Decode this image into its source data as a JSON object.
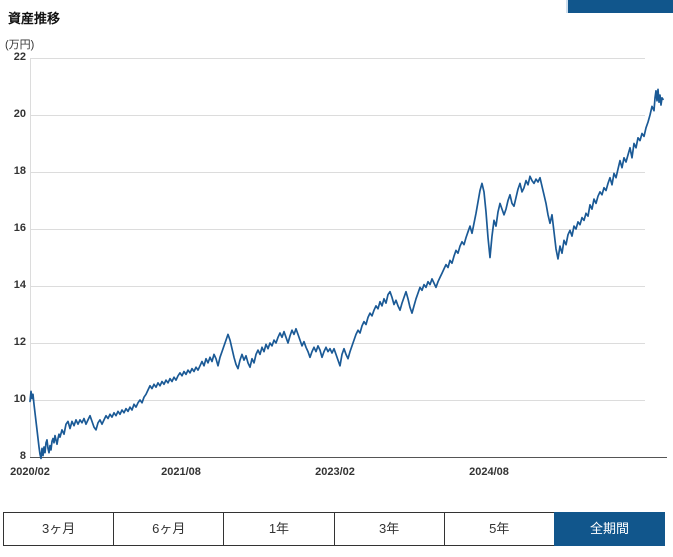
{
  "colors": {
    "accent": "#11568c",
    "line": "#1b5a96",
    "grid": "#dcdcdc",
    "axis": "#555555"
  },
  "header": {
    "title": "資産推移",
    "unit_label": "(万円)"
  },
  "chart_data": {
    "type": "line",
    "title": "資産推移",
    "ylabel": "(万円)",
    "line_color": "#1b5a96",
    "grid": true,
    "ylim": [
      8,
      22
    ],
    "y_ticks": [
      22,
      20,
      18,
      16,
      14,
      12,
      10,
      8
    ],
    "x_ticks": [
      {
        "label": "2020/02",
        "offset": 0
      },
      {
        "label": "2021/08",
        "offset": 151
      },
      {
        "label": "2023/02",
        "offset": 305
      },
      {
        "label": "2024/08",
        "offset": 459
      }
    ],
    "x_offset_max": 633,
    "points": [
      [
        0,
        9.95
      ],
      [
        1,
        10.3
      ],
      [
        2,
        10.05
      ],
      [
        3,
        10.2
      ],
      [
        4,
        9.85
      ],
      [
        5,
        9.55
      ],
      [
        6,
        9.25
      ],
      [
        7,
        8.95
      ],
      [
        8,
        8.65
      ],
      [
        9,
        8.35
      ],
      [
        10,
        8.1
      ],
      [
        11,
        7.95
      ],
      [
        12,
        8.3
      ],
      [
        13,
        8.05
      ],
      [
        14,
        8.35
      ],
      [
        15,
        8.15
      ],
      [
        16,
        8.5
      ],
      [
        17,
        8.6
      ],
      [
        18,
        8.3
      ],
      [
        19,
        8.15
      ],
      [
        20,
        8.4
      ],
      [
        21,
        8.25
      ],
      [
        22,
        8.55
      ],
      [
        23,
        8.65
      ],
      [
        24,
        8.5
      ],
      [
        25,
        8.75
      ],
      [
        26,
        8.6
      ],
      [
        27,
        8.45
      ],
      [
        28,
        8.65
      ],
      [
        29,
        8.8
      ],
      [
        30,
        8.7
      ],
      [
        32,
        8.95
      ],
      [
        34,
        8.8
      ],
      [
        36,
        9.15
      ],
      [
        38,
        9.25
      ],
      [
        40,
        9.0
      ],
      [
        42,
        9.25
      ],
      [
        44,
        9.1
      ],
      [
        46,
        9.3
      ],
      [
        48,
        9.15
      ],
      [
        50,
        9.3
      ],
      [
        52,
        9.2
      ],
      [
        54,
        9.35
      ],
      [
        56,
        9.15
      ],
      [
        58,
        9.3
      ],
      [
        60,
        9.45
      ],
      [
        62,
        9.25
      ],
      [
        64,
        9.05
      ],
      [
        66,
        8.95
      ],
      [
        68,
        9.2
      ],
      [
        70,
        9.3
      ],
      [
        72,
        9.15
      ],
      [
        74,
        9.3
      ],
      [
        76,
        9.45
      ],
      [
        78,
        9.35
      ],
      [
        80,
        9.5
      ],
      [
        82,
        9.4
      ],
      [
        84,
        9.55
      ],
      [
        86,
        9.45
      ],
      [
        88,
        9.6
      ],
      [
        90,
        9.5
      ],
      [
        92,
        9.65
      ],
      [
        94,
        9.55
      ],
      [
        96,
        9.7
      ],
      [
        98,
        9.6
      ],
      [
        100,
        9.75
      ],
      [
        102,
        9.65
      ],
      [
        104,
        9.85
      ],
      [
        106,
        9.75
      ],
      [
        108,
        9.9
      ],
      [
        110,
        10.0
      ],
      [
        112,
        9.9
      ],
      [
        114,
        10.1
      ],
      [
        116,
        10.2
      ],
      [
        118,
        10.35
      ],
      [
        120,
        10.5
      ],
      [
        122,
        10.4
      ],
      [
        124,
        10.55
      ],
      [
        126,
        10.45
      ],
      [
        128,
        10.6
      ],
      [
        130,
        10.5
      ],
      [
        132,
        10.65
      ],
      [
        134,
        10.55
      ],
      [
        136,
        10.7
      ],
      [
        138,
        10.6
      ],
      [
        140,
        10.75
      ],
      [
        142,
        10.65
      ],
      [
        144,
        10.8
      ],
      [
        146,
        10.7
      ],
      [
        148,
        10.85
      ],
      [
        150,
        10.95
      ],
      [
        152,
        10.85
      ],
      [
        154,
        11.0
      ],
      [
        156,
        10.9
      ],
      [
        158,
        11.05
      ],
      [
        160,
        10.95
      ],
      [
        162,
        11.1
      ],
      [
        164,
        11.0
      ],
      [
        166,
        11.15
      ],
      [
        168,
        11.05
      ],
      [
        170,
        11.2
      ],
      [
        172,
        11.35
      ],
      [
        174,
        11.2
      ],
      [
        176,
        11.45
      ],
      [
        178,
        11.3
      ],
      [
        180,
        11.5
      ],
      [
        182,
        11.35
      ],
      [
        184,
        11.6
      ],
      [
        186,
        11.45
      ],
      [
        188,
        11.2
      ],
      [
        190,
        11.5
      ],
      [
        192,
        11.7
      ],
      [
        194,
        11.9
      ],
      [
        196,
        12.1
      ],
      [
        198,
        12.3
      ],
      [
        200,
        12.1
      ],
      [
        202,
        11.8
      ],
      [
        204,
        11.5
      ],
      [
        206,
        11.25
      ],
      [
        208,
        11.1
      ],
      [
        210,
        11.4
      ],
      [
        212,
        11.6
      ],
      [
        214,
        11.4
      ],
      [
        216,
        11.55
      ],
      [
        218,
        11.3
      ],
      [
        220,
        11.15
      ],
      [
        222,
        11.45
      ],
      [
        224,
        11.3
      ],
      [
        226,
        11.6
      ],
      [
        228,
        11.75
      ],
      [
        230,
        11.6
      ],
      [
        232,
        11.85
      ],
      [
        234,
        11.7
      ],
      [
        236,
        11.95
      ],
      [
        238,
        11.8
      ],
      [
        240,
        12.0
      ],
      [
        242,
        11.9
      ],
      [
        244,
        12.1
      ],
      [
        246,
        12.0
      ],
      [
        248,
        12.2
      ],
      [
        250,
        12.35
      ],
      [
        252,
        12.2
      ],
      [
        254,
        12.4
      ],
      [
        256,
        12.2
      ],
      [
        258,
        12.0
      ],
      [
        260,
        12.25
      ],
      [
        262,
        12.45
      ],
      [
        264,
        12.3
      ],
      [
        266,
        12.5
      ],
      [
        268,
        12.3
      ],
      [
        270,
        12.1
      ],
      [
        272,
        11.9
      ],
      [
        274,
        12.05
      ],
      [
        276,
        11.85
      ],
      [
        278,
        11.7
      ],
      [
        280,
        11.5
      ],
      [
        282,
        11.7
      ],
      [
        284,
        11.85
      ],
      [
        286,
        11.7
      ],
      [
        288,
        11.9
      ],
      [
        290,
        11.75
      ],
      [
        292,
        11.5
      ],
      [
        294,
        11.7
      ],
      [
        296,
        11.85
      ],
      [
        298,
        11.7
      ],
      [
        300,
        11.8
      ],
      [
        302,
        11.65
      ],
      [
        304,
        11.8
      ],
      [
        306,
        11.6
      ],
      [
        308,
        11.4
      ],
      [
        310,
        11.2
      ],
      [
        312,
        11.6
      ],
      [
        314,
        11.8
      ],
      [
        316,
        11.6
      ],
      [
        318,
        11.45
      ],
      [
        320,
        11.7
      ],
      [
        322,
        11.9
      ],
      [
        324,
        12.1
      ],
      [
        326,
        12.3
      ],
      [
        328,
        12.45
      ],
      [
        330,
        12.35
      ],
      [
        332,
        12.6
      ],
      [
        334,
        12.75
      ],
      [
        336,
        12.65
      ],
      [
        338,
        12.9
      ],
      [
        340,
        13.05
      ],
      [
        342,
        12.95
      ],
      [
        344,
        13.15
      ],
      [
        346,
        13.3
      ],
      [
        348,
        13.2
      ],
      [
        350,
        13.45
      ],
      [
        352,
        13.3
      ],
      [
        354,
        13.55
      ],
      [
        356,
        13.4
      ],
      [
        358,
        13.7
      ],
      [
        360,
        13.8
      ],
      [
        362,
        13.6
      ],
      [
        364,
        13.35
      ],
      [
        366,
        13.5
      ],
      [
        368,
        13.3
      ],
      [
        370,
        13.15
      ],
      [
        372,
        13.4
      ],
      [
        374,
        13.6
      ],
      [
        376,
        13.8
      ],
      [
        378,
        13.55
      ],
      [
        380,
        13.25
      ],
      [
        382,
        13.05
      ],
      [
        384,
        13.3
      ],
      [
        386,
        13.55
      ],
      [
        388,
        13.75
      ],
      [
        390,
        13.95
      ],
      [
        392,
        13.85
      ],
      [
        394,
        14.05
      ],
      [
        396,
        13.95
      ],
      [
        398,
        14.15
      ],
      [
        400,
        14.05
      ],
      [
        402,
        14.25
      ],
      [
        404,
        14.1
      ],
      [
        406,
        13.95
      ],
      [
        408,
        14.15
      ],
      [
        410,
        14.3
      ],
      [
        412,
        14.45
      ],
      [
        414,
        14.6
      ],
      [
        416,
        14.75
      ],
      [
        418,
        14.65
      ],
      [
        420,
        14.9
      ],
      [
        422,
        14.8
      ],
      [
        424,
        15.05
      ],
      [
        426,
        15.25
      ],
      [
        428,
        15.15
      ],
      [
        430,
        15.4
      ],
      [
        432,
        15.55
      ],
      [
        434,
        15.45
      ],
      [
        436,
        15.7
      ],
      [
        438,
        15.9
      ],
      [
        440,
        16.1
      ],
      [
        442,
        15.85
      ],
      [
        444,
        16.2
      ],
      [
        446,
        16.55
      ],
      [
        448,
        16.95
      ],
      [
        450,
        17.35
      ],
      [
        452,
        17.6
      ],
      [
        454,
        17.3
      ],
      [
        456,
        16.6
      ],
      [
        458,
        15.7
      ],
      [
        460,
        15.0
      ],
      [
        462,
        15.75
      ],
      [
        464,
        16.3
      ],
      [
        466,
        16.1
      ],
      [
        468,
        16.6
      ],
      [
        470,
        16.9
      ],
      [
        472,
        16.7
      ],
      [
        474,
        16.5
      ],
      [
        476,
        16.7
      ],
      [
        478,
        17.0
      ],
      [
        480,
        17.2
      ],
      [
        482,
        16.9
      ],
      [
        484,
        16.8
      ],
      [
        486,
        17.1
      ],
      [
        488,
        17.4
      ],
      [
        490,
        17.6
      ],
      [
        492,
        17.3
      ],
      [
        494,
        17.45
      ],
      [
        496,
        17.7
      ],
      [
        498,
        17.55
      ],
      [
        500,
        17.85
      ],
      [
        502,
        17.7
      ],
      [
        504,
        17.6
      ],
      [
        506,
        17.75
      ],
      [
        508,
        17.65
      ],
      [
        510,
        17.8
      ],
      [
        512,
        17.5
      ],
      [
        514,
        17.2
      ],
      [
        516,
        16.9
      ],
      [
        518,
        16.5
      ],
      [
        520,
        16.2
      ],
      [
        522,
        16.5
      ],
      [
        524,
        15.9
      ],
      [
        526,
        15.3
      ],
      [
        528,
        14.95
      ],
      [
        530,
        15.4
      ],
      [
        532,
        15.15
      ],
      [
        534,
        15.6
      ],
      [
        536,
        15.45
      ],
      [
        538,
        15.8
      ],
      [
        540,
        15.95
      ],
      [
        542,
        15.75
      ],
      [
        544,
        16.1
      ],
      [
        546,
        16.0
      ],
      [
        548,
        16.25
      ],
      [
        550,
        16.15
      ],
      [
        552,
        16.4
      ],
      [
        554,
        16.3
      ],
      [
        556,
        16.55
      ],
      [
        558,
        16.45
      ],
      [
        560,
        16.85
      ],
      [
        562,
        16.7
      ],
      [
        564,
        17.05
      ],
      [
        566,
        16.9
      ],
      [
        568,
        17.15
      ],
      [
        570,
        17.3
      ],
      [
        572,
        17.2
      ],
      [
        574,
        17.45
      ],
      [
        576,
        17.35
      ],
      [
        578,
        17.6
      ],
      [
        580,
        17.8
      ],
      [
        582,
        17.55
      ],
      [
        584,
        17.95
      ],
      [
        586,
        17.8
      ],
      [
        588,
        18.1
      ],
      [
        590,
        18.4
      ],
      [
        592,
        18.15
      ],
      [
        594,
        18.5
      ],
      [
        596,
        18.35
      ],
      [
        598,
        18.6
      ],
      [
        600,
        18.85
      ],
      [
        602,
        18.5
      ],
      [
        604,
        19.0
      ],
      [
        606,
        18.85
      ],
      [
        608,
        19.2
      ],
      [
        610,
        19.1
      ],
      [
        612,
        19.35
      ],
      [
        614,
        19.25
      ],
      [
        616,
        19.55
      ],
      [
        618,
        19.75
      ],
      [
        620,
        20.0
      ],
      [
        622,
        20.3
      ],
      [
        624,
        20.15
      ],
      [
        625,
        20.6
      ],
      [
        626,
        20.85
      ],
      [
        627,
        20.5
      ],
      [
        628,
        20.9
      ],
      [
        629,
        20.45
      ],
      [
        630,
        20.7
      ],
      [
        631,
        20.35
      ],
      [
        632,
        20.6
      ],
      [
        633,
        20.55
      ]
    ]
  },
  "period_buttons": {
    "items": [
      {
        "key": "3m",
        "label": "3ヶ月",
        "selected": false
      },
      {
        "key": "6m",
        "label": "6ヶ月",
        "selected": false
      },
      {
        "key": "1y",
        "label": "1年",
        "selected": false
      },
      {
        "key": "3y",
        "label": "3年",
        "selected": false
      },
      {
        "key": "5y",
        "label": "5年",
        "selected": false
      },
      {
        "key": "all",
        "label": "全期間",
        "selected": true
      }
    ]
  }
}
